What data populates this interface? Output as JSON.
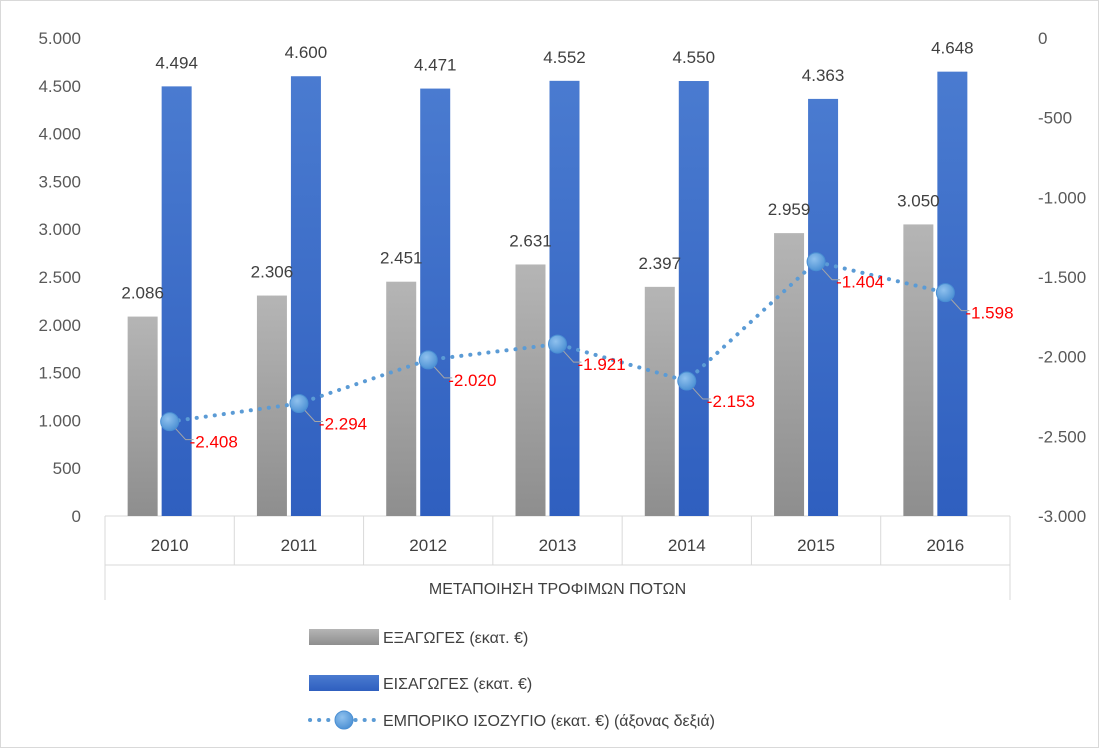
{
  "chart_data": {
    "type": "bar",
    "categories": [
      "2010",
      "2011",
      "2012",
      "2013",
      "2014",
      "2015",
      "2016"
    ],
    "category_group_label": "ΜΕΤΑΠΟΙΗΣΗ ΤΡΟΦΙΜΩΝ ΠΟΤΩΝ",
    "series": [
      {
        "name": "ΕΞΑΓΩΓΕΣ (εκατ. €)",
        "type": "bar",
        "axis": "left",
        "color": "#a6a6a6",
        "values": [
          2086,
          2306,
          2451,
          2631,
          2397,
          2959,
          3050
        ],
        "labels": [
          "2.086",
          "2.306",
          "2.451",
          "2.631",
          "2.397",
          "2.959",
          "3.050"
        ]
      },
      {
        "name": "ΕΙΣΑΓΩΓΕΣ (εκατ. €)",
        "type": "bar",
        "axis": "left",
        "color": "#3a6cc8",
        "values": [
          4494,
          4600,
          4471,
          4552,
          4550,
          4363,
          4648
        ],
        "labels": [
          "4.494",
          "4.600",
          "4.471",
          "4.552",
          "4.550",
          "4.363",
          "4.648"
        ]
      },
      {
        "name": "ΕΜΠΟΡΙΚΟ ΙΣΟΖΥΓΙΟ (εκατ. €)  (άξονας δεξιά)",
        "type": "line",
        "axis": "right",
        "color": "#5b9bd5",
        "label_color": "#ff0000",
        "line_style": "dotted",
        "values": [
          -2408,
          -2294,
          -2020,
          -1921,
          -2153,
          -1404,
          -1598
        ],
        "labels": [
          "-2.408",
          "-2.294",
          "-2.020",
          "-1.921",
          "-2.153",
          "-1.404",
          "-1.598"
        ]
      }
    ],
    "y_left": {
      "ylim": [
        0,
        5000
      ],
      "ticks": [
        0,
        500,
        1000,
        1500,
        2000,
        2500,
        3000,
        3500,
        4000,
        4500,
        5000
      ],
      "tick_labels": [
        "0",
        "500",
        "1.000",
        "1.500",
        "2.000",
        "2.500",
        "3.000",
        "3.500",
        "4.000",
        "4.500",
        "5.000"
      ]
    },
    "y_right": {
      "ylim": [
        -3000,
        0
      ],
      "ticks": [
        0,
        -500,
        -1000,
        -1500,
        -2000,
        -2500,
        -3000
      ],
      "tick_labels": [
        "0",
        "-500",
        "-1.000",
        "-1.500",
        "-2.000",
        "-2.500",
        "-3.000"
      ]
    },
    "grid": false,
    "legend_position": "bottom"
  }
}
